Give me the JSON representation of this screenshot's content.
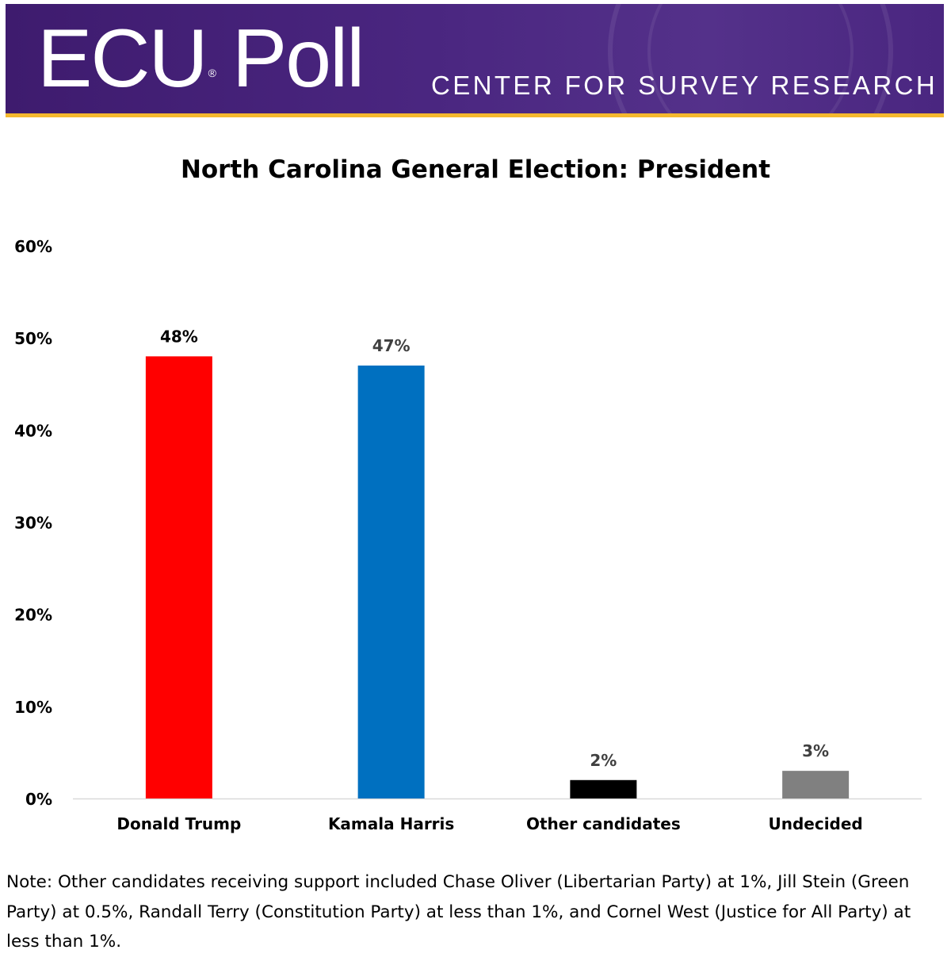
{
  "header": {
    "logo_text": "ECU Poll",
    "logo_main": "ECU",
    "logo_mark": "®",
    "logo_suffix": "Poll",
    "tagline": "CENTER FOR SURVEY RESEARCH",
    "colors": {
      "banner": "#4a2680",
      "stripe": "#f5b82e"
    }
  },
  "chart_data": {
    "type": "bar",
    "title": "North Carolina General Election: President",
    "categories": [
      "Donald Trump",
      "Kamala Harris",
      "Other candidates",
      "Undecided"
    ],
    "values": [
      48,
      47,
      2,
      3
    ],
    "data_labels": [
      "48%",
      "47%",
      "2%",
      "3%"
    ],
    "colors": [
      "#ff0000",
      "#0070c0",
      "#000000",
      "#808080"
    ],
    "ylim": [
      0,
      60
    ],
    "yticks": [
      0,
      10,
      20,
      30,
      40,
      50,
      60
    ],
    "ytick_labels": [
      "0%",
      "10%",
      "20%",
      "30%",
      "40%",
      "50%",
      "60%"
    ],
    "xlabel": "",
    "ylabel": "",
    "grid": false,
    "legend": "none"
  },
  "note": "Note: Other candidates receiving support included Chase Oliver (Libertarian Party) at 1%, Jill Stein (Green Party) at 0.5%, Randall Terry (Constitution Party) at less than 1%, and Cornel West (Justice for All Party) at less than 1%."
}
